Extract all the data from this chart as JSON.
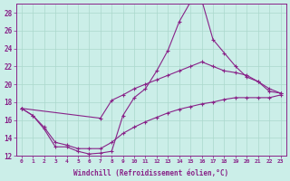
{
  "background_color": "#cbeee8",
  "grid_color": "#aad8cc",
  "line_color": "#882288",
  "marker_color": "#882288",
  "xlabel": "Windchill (Refroidissement éolien,°C)",
  "xlim": [
    -0.5,
    23.5
  ],
  "ylim": [
    12,
    29
  ],
  "yticks": [
    12,
    14,
    16,
    18,
    20,
    22,
    24,
    26,
    28
  ],
  "xticks": [
    0,
    1,
    2,
    3,
    4,
    5,
    6,
    7,
    8,
    9,
    10,
    11,
    12,
    13,
    14,
    15,
    16,
    17,
    18,
    19,
    20,
    21,
    22,
    23
  ],
  "line1_x": [
    0,
    1,
    2,
    3,
    4,
    5,
    6,
    7,
    8,
    9,
    10,
    11,
    12,
    13,
    14,
    15,
    16,
    17,
    18,
    19,
    20,
    21,
    22,
    23
  ],
  "line1_y": [
    17.3,
    16.5,
    15.0,
    13.0,
    13.0,
    12.5,
    12.2,
    12.3,
    12.5,
    16.5,
    18.5,
    19.5,
    21.5,
    23.8,
    27.0,
    29.2,
    29.4,
    25.0,
    23.5,
    22.0,
    20.8,
    20.3,
    19.2,
    19.0
  ],
  "line2_x": [
    0,
    7,
    8,
    9,
    10,
    11,
    12,
    13,
    14,
    15,
    16,
    17,
    18,
    19,
    20,
    21,
    22,
    23
  ],
  "line2_y": [
    17.3,
    16.2,
    18.2,
    18.8,
    19.5,
    20.0,
    20.5,
    21.0,
    21.5,
    22.0,
    22.5,
    22.0,
    21.5,
    21.3,
    21.0,
    20.3,
    19.5,
    19.0
  ],
  "line3_x": [
    0,
    1,
    2,
    3,
    4,
    5,
    6,
    7,
    8,
    9,
    10,
    11,
    12,
    13,
    14,
    15,
    16,
    17,
    18,
    19,
    20,
    21,
    22,
    23
  ],
  "line3_y": [
    17.3,
    16.5,
    15.2,
    13.5,
    13.2,
    12.8,
    12.8,
    12.8,
    13.5,
    14.5,
    15.2,
    15.8,
    16.3,
    16.8,
    17.2,
    17.5,
    17.8,
    18.0,
    18.3,
    18.5,
    18.5,
    18.5,
    18.5,
    18.8
  ]
}
